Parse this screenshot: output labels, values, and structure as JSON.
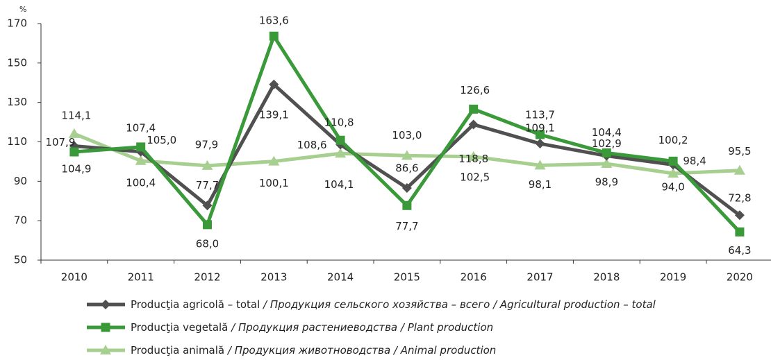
{
  "chart_data": {
    "type": "line",
    "y_unit": "%",
    "categories": [
      "2010",
      "2011",
      "2012",
      "2013",
      "2014",
      "2015",
      "2016",
      "2017",
      "2018",
      "2019",
      "2020"
    ],
    "ylim": [
      50,
      170
    ],
    "yticks": [
      50,
      70,
      90,
      110,
      130,
      150,
      170
    ],
    "grid": false,
    "legend": "bottom",
    "series": [
      {
        "name": "Producţia agricolă – total / Продукция сельского хозяйства – всего / Agricultural production – total",
        "color": "#505050",
        "marker": "diamond",
        "values": [
          107.9,
          105.0,
          77.7,
          139.1,
          108.6,
          86.6,
          118.8,
          109.1,
          102.9,
          98.4,
          72.8
        ],
        "value_labels": [
          "107,9",
          "105,0",
          "77,7",
          "139,1",
          "108,6",
          "86,6",
          "118,8",
          "109,1",
          "102,9",
          "98,4",
          "72,8"
        ]
      },
      {
        "name": "Producţia vegetală / Продукция растениеводства / Plant production",
        "color": "#3a9a3a",
        "marker": "square",
        "values": [
          104.9,
          107.4,
          68.0,
          163.6,
          110.8,
          77.7,
          126.6,
          113.7,
          104.4,
          100.2,
          64.3
        ],
        "value_labels": [
          "104,9",
          "107,4",
          "68,0",
          "163,6",
          "110,8",
          "77,7",
          "126,6",
          "113,7",
          "104,4",
          "100,2",
          "64,3"
        ]
      },
      {
        "name": "Producţia animală / Продукция животноводства / Animal production",
        "color": "#a6cf90",
        "marker": "triangle",
        "values": [
          114.1,
          100.4,
          97.9,
          100.1,
          104.1,
          103.0,
          102.5,
          98.1,
          98.9,
          94.0,
          95.5
        ],
        "value_labels": [
          "114,1",
          "100,4",
          "97,9",
          "100,1",
          "104,1",
          "103,0",
          "102,5",
          "98,1",
          "98,9",
          "94,0",
          "95,5"
        ]
      }
    ]
  }
}
